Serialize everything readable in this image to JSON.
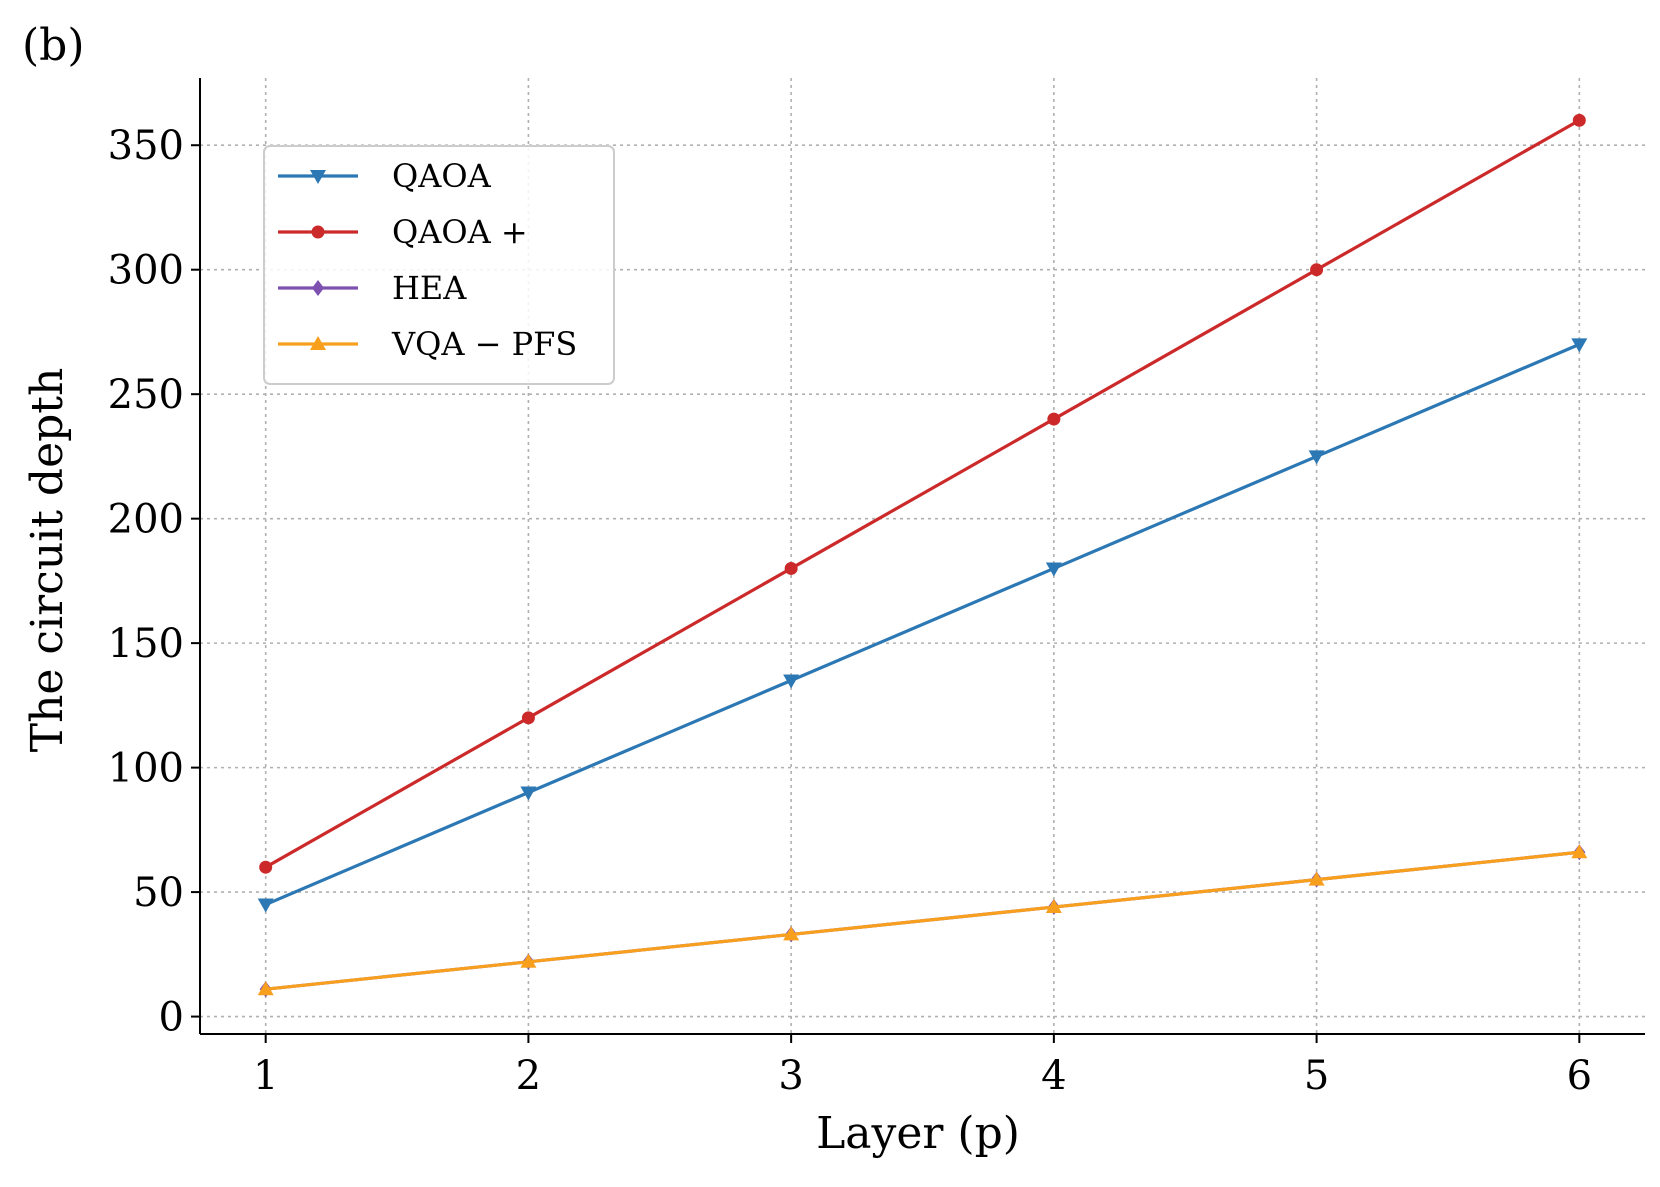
{
  "panel_label": "(b)",
  "chart_data": {
    "type": "line",
    "title": "",
    "xlabel": "Layer (p)",
    "ylabel": "The circuit depth",
    "x": [
      1,
      2,
      3,
      4,
      5,
      6
    ],
    "xlim": [
      0.75,
      6.25
    ],
    "ylim": [
      -7,
      377
    ],
    "xticks": [
      1,
      2,
      3,
      4,
      5,
      6
    ],
    "yticks": [
      0,
      50,
      100,
      150,
      200,
      250,
      300,
      350
    ],
    "grid": true,
    "legend_position": "upper-left",
    "series": [
      {
        "name": "QAOA",
        "values": [
          45,
          90,
          135,
          180,
          225,
          270
        ],
        "color": "#2c78b4",
        "marker": "triangle-down"
      },
      {
        "name": "QAOA +",
        "values": [
          60,
          120,
          180,
          240,
          300,
          360
        ],
        "color": "#cc2a2a",
        "marker": "circle"
      },
      {
        "name": "HEA",
        "values": [
          11,
          22,
          33,
          44,
          55,
          66
        ],
        "color": "#7e50b0",
        "marker": "diamond"
      },
      {
        "name": "VQA − PFS",
        "values": [
          11,
          22,
          33,
          44,
          55,
          66
        ],
        "color": "#f8a01e",
        "marker": "triangle-up"
      }
    ]
  }
}
